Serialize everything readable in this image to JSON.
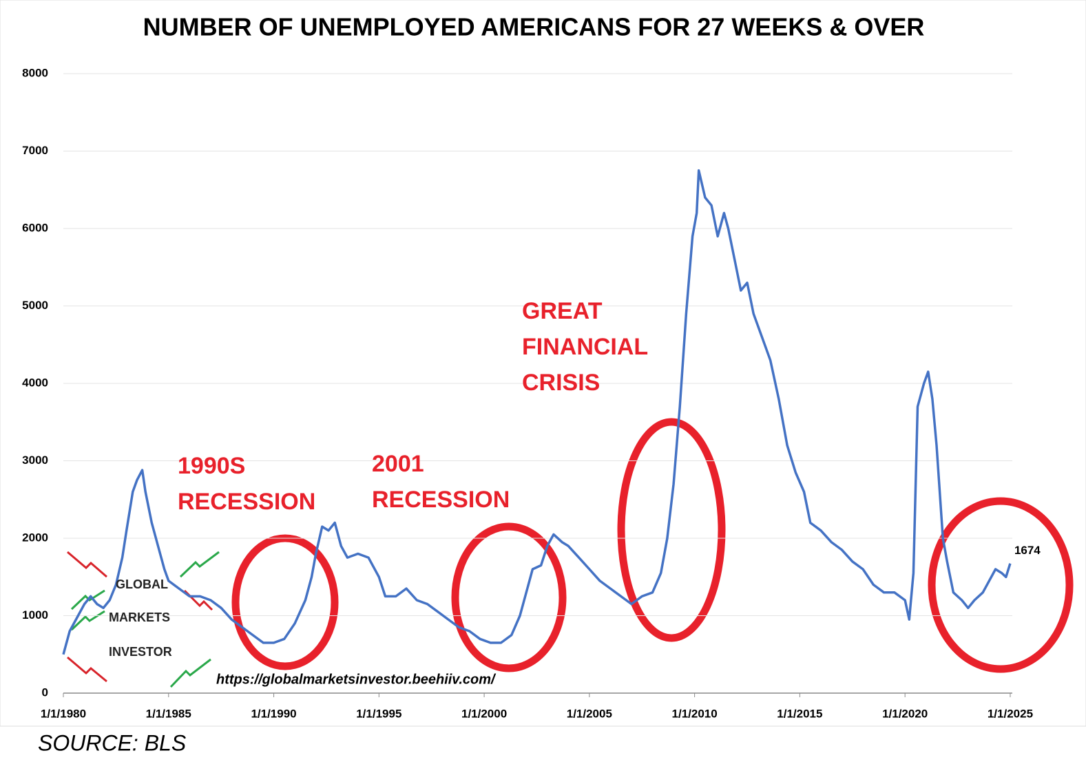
{
  "chart_data": {
    "type": "line",
    "title": "NUMBER OF UNEMPLOYED AMERICANS FOR 27 WEEKS & OVER",
    "source": "SOURCE: BLS",
    "url": "https://globalmarketsinvestor.beehiiv.com/",
    "logo": [
      "GLOBAL",
      "MARKETS",
      "INVESTOR"
    ],
    "annotations": [
      [
        "1990S",
        "RECESSION"
      ],
      [
        "2001",
        "RECESSION"
      ],
      [
        "GREAT",
        "FINANCIAL",
        "CRISIS"
      ]
    ],
    "xlim": [
      1980,
      2025.1
    ],
    "ylim": [
      0,
      8000
    ],
    "xticks": [
      {
        "value": 1980,
        "label": "1/1/1980"
      },
      {
        "value": 1985,
        "label": "1/1/1985"
      },
      {
        "value": 1990,
        "label": "1/1/1990"
      },
      {
        "value": 1995,
        "label": "1/1/1995"
      },
      {
        "value": 2000,
        "label": "1/1/2000"
      },
      {
        "value": 2005,
        "label": "1/1/2005"
      },
      {
        "value": 2010,
        "label": "1/1/2010"
      },
      {
        "value": 2015,
        "label": "1/1/2015"
      },
      {
        "value": 2020,
        "label": "1/1/2020"
      },
      {
        "value": 2025,
        "label": "1/1/2025"
      }
    ],
    "yticks": [
      0,
      1000,
      2000,
      3000,
      4000,
      5000,
      6000,
      7000,
      8000
    ],
    "grid": true,
    "series": [
      {
        "color": "#4472c4",
        "x": [
          1980.0,
          1980.3,
          1980.7,
          1981.0,
          1981.3,
          1981.6,
          1981.9,
          1982.2,
          1982.5,
          1982.8,
          1983.0,
          1983.3,
          1983.5,
          1983.75,
          1983.9,
          1984.2,
          1984.5,
          1984.8,
          1985.0,
          1985.5,
          1986.0,
          1986.5,
          1987.0,
          1987.5,
          1988.0,
          1988.5,
          1989.0,
          1989.5,
          1990.0,
          1990.5,
          1991.0,
          1991.5,
          1991.8,
          1992.0,
          1992.3,
          1992.6,
          1992.9,
          1993.2,
          1993.5,
          1994.0,
          1994.5,
          1995.0,
          1995.3,
          1995.8,
          1996.3,
          1996.8,
          1997.3,
          1997.8,
          1998.3,
          1998.8,
          1999.3,
          1999.8,
          2000.3,
          2000.8,
          2001.3,
          2001.7,
          2002.0,
          2002.3,
          2002.7,
          2003.0,
          2003.3,
          2003.7,
          2004.0,
          2004.5,
          2005.0,
          2005.5,
          2006.0,
          2006.5,
          2007.0,
          2007.5,
          2008.0,
          2008.4,
          2008.7,
          2009.0,
          2009.3,
          2009.6,
          2009.9,
          2010.1,
          2010.2,
          2010.5,
          2010.8,
          2011.1,
          2011.4,
          2011.6,
          2011.9,
          2012.2,
          2012.5,
          2012.8,
          2013.2,
          2013.6,
          2014.0,
          2014.4,
          2014.8,
          2015.2,
          2015.5,
          2016.0,
          2016.5,
          2017.0,
          2017.5,
          2018.0,
          2018.5,
          2019.0,
          2019.5,
          2020.0,
          2020.2,
          2020.4,
          2020.6,
          2020.9,
          2021.1,
          2021.3,
          2021.5,
          2021.8,
          2022.0,
          2022.3,
          2022.7,
          2023.0,
          2023.3,
          2023.7,
          2024.0,
          2024.3,
          2024.6,
          2024.8,
          2025.0
        ],
        "values": [
          500,
          800,
          1000,
          1150,
          1250,
          1150,
          1100,
          1200,
          1400,
          1750,
          2100,
          2600,
          2750,
          2880,
          2600,
          2200,
          1900,
          1600,
          1450,
          1350,
          1250,
          1250,
          1200,
          1100,
          950,
          850,
          750,
          650,
          650,
          700,
          900,
          1200,
          1500,
          1800,
          2150,
          2100,
          2200,
          1900,
          1750,
          1800,
          1750,
          1500,
          1250,
          1250,
          1350,
          1200,
          1150,
          1050,
          950,
          850,
          800,
          700,
          650,
          650,
          750,
          1000,
          1300,
          1600,
          1650,
          1900,
          2050,
          1950,
          1900,
          1750,
          1600,
          1450,
          1350,
          1250,
          1150,
          1250,
          1300,
          1550,
          2000,
          2700,
          3700,
          4900,
          5900,
          6200,
          6750,
          6400,
          6300,
          5900,
          6200,
          6000,
          5600,
          5200,
          5300,
          4900,
          4600,
          4300,
          3800,
          3200,
          2850,
          2600,
          2200,
          2100,
          1950,
          1850,
          1700,
          1600,
          1400,
          1300,
          1300,
          1200,
          950,
          1550,
          3700,
          4000,
          4150,
          3800,
          3200,
          2000,
          1700,
          1300,
          1200,
          1100,
          1200,
          1300,
          1450,
          1600,
          1550,
          1500,
          1674
        ]
      }
    ]
  }
}
